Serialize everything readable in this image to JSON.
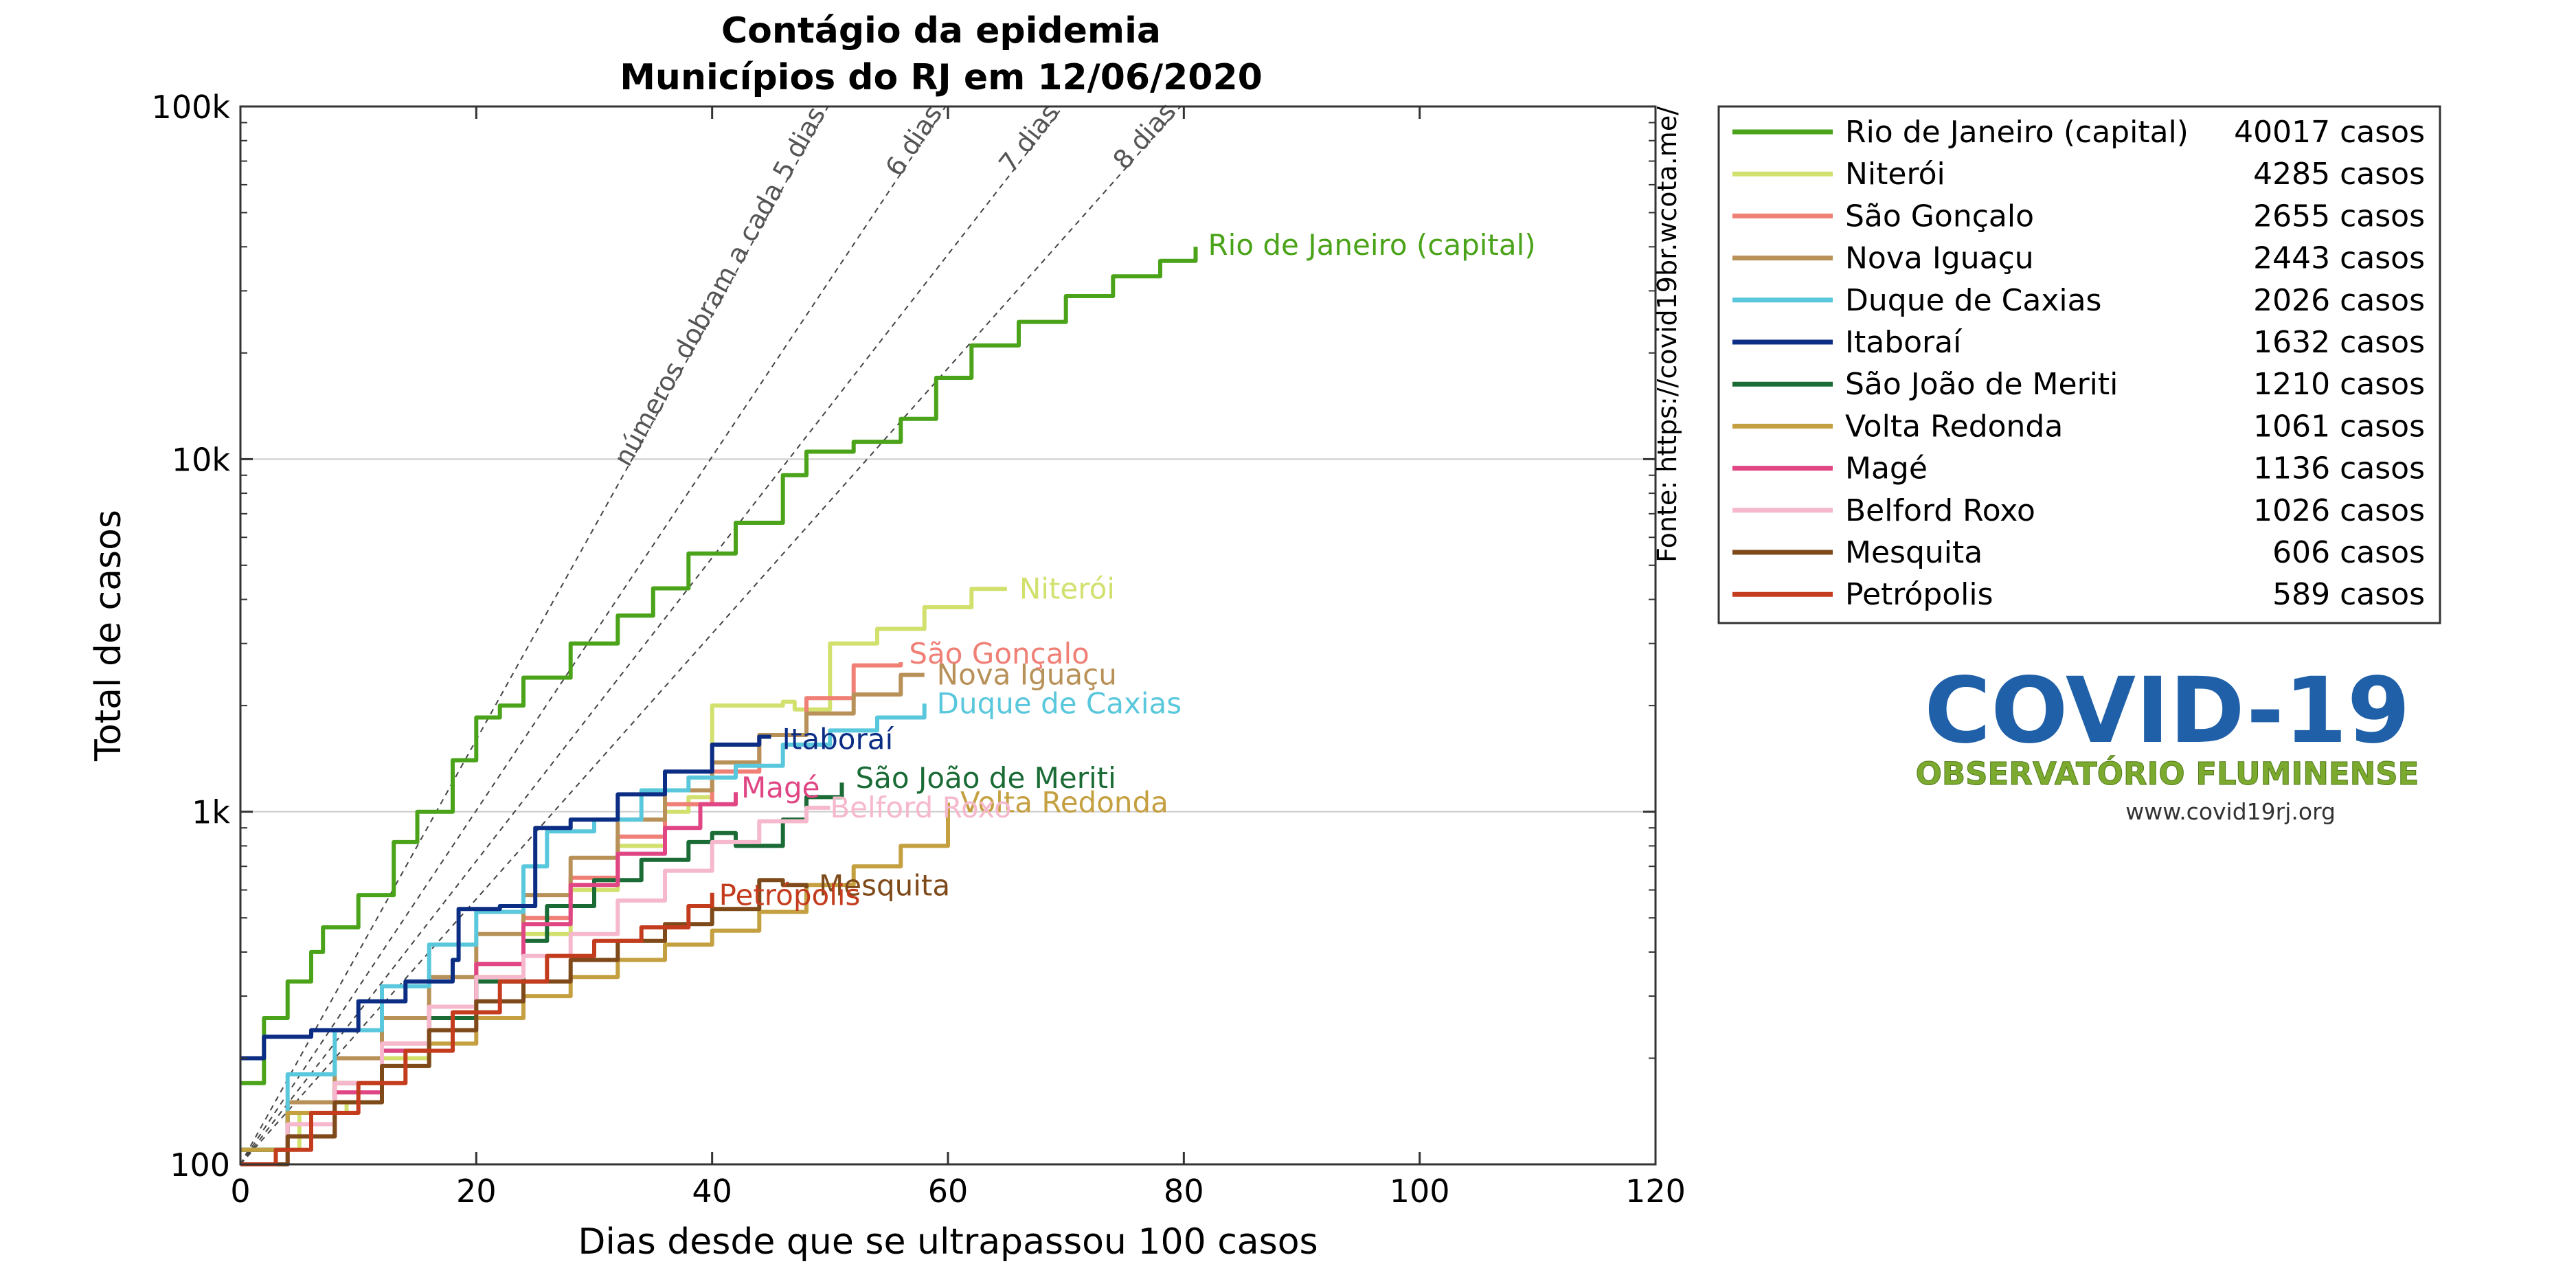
{
  "chart_data": {
    "type": "line",
    "title": "Contágio da epidemia",
    "subtitle": "Municípios do RJ em 12/06/2020",
    "xlabel": "Dias desde que se ultrapassou 100 casos",
    "ylabel": "Total de casos",
    "xlim": [
      0,
      120
    ],
    "ylim": [
      100,
      100000
    ],
    "yscale": "log",
    "x_ticks": [
      0,
      20,
      40,
      60,
      80,
      100,
      120
    ],
    "y_ticks": [
      {
        "value": 100,
        "label": "100"
      },
      {
        "value": 1000,
        "label": "1k"
      },
      {
        "value": 10000,
        "label": "10k"
      },
      {
        "value": 100000,
        "label": "100k"
      }
    ],
    "grid": "horizontal major",
    "source_note": "Fonte: https://covid19br.wcota.me/",
    "legend_position": "right",
    "legend_suffix": "casos",
    "doubling_lines": [
      {
        "days": 5,
        "label": "números dobram a cada 5 dias"
      },
      {
        "days": 6,
        "label": "6 dias"
      },
      {
        "days": 7,
        "label": "7 dias"
      },
      {
        "days": 8,
        "label": "8 dias"
      }
    ],
    "series": [
      {
        "name": "Rio de Janeiro (capital)",
        "total": 40017,
        "color": "#4aa319",
        "points": [
          [
            0,
            170
          ],
          [
            2,
            260
          ],
          [
            4,
            330
          ],
          [
            6,
            400
          ],
          [
            7,
            470
          ],
          [
            10,
            580
          ],
          [
            13,
            820
          ],
          [
            15,
            1000
          ],
          [
            18,
            1400
          ],
          [
            20,
            1850
          ],
          [
            22,
            2000
          ],
          [
            24,
            2400
          ],
          [
            28,
            3000
          ],
          [
            32,
            3600
          ],
          [
            35,
            4300
          ],
          [
            38,
            5400
          ],
          [
            42,
            6600
          ],
          [
            46,
            9000
          ],
          [
            48,
            10500
          ],
          [
            52,
            11200
          ],
          [
            56,
            13000
          ],
          [
            59,
            17000
          ],
          [
            62,
            21000
          ],
          [
            66,
            24500
          ],
          [
            70,
            29000
          ],
          [
            74,
            33000
          ],
          [
            78,
            36500
          ],
          [
            81,
            40017
          ]
        ]
      },
      {
        "name": "Niterói",
        "total": 4285,
        "color": "#d2e06e",
        "points": [
          [
            0,
            110
          ],
          [
            5,
            140
          ],
          [
            9,
            150
          ],
          [
            12,
            200
          ],
          [
            16,
            260
          ],
          [
            20,
            340
          ],
          [
            24,
            450
          ],
          [
            28,
            600
          ],
          [
            32,
            800
          ],
          [
            36,
            1000
          ],
          [
            38,
            1100
          ],
          [
            40,
            2000
          ],
          [
            46,
            2050
          ],
          [
            47,
            1950
          ],
          [
            50,
            3000
          ],
          [
            54,
            3300
          ],
          [
            58,
            3800
          ],
          [
            62,
            4285
          ],
          [
            65,
            4285
          ]
        ]
      },
      {
        "name": "São Gonçalo",
        "total": 2655,
        "color": "#f07f76",
        "points": [
          [
            0,
            100
          ],
          [
            4,
            130
          ],
          [
            8,
            170
          ],
          [
            12,
            220
          ],
          [
            16,
            280
          ],
          [
            20,
            370
          ],
          [
            24,
            500
          ],
          [
            28,
            650
          ],
          [
            32,
            850
          ],
          [
            36,
            1050
          ],
          [
            40,
            1300
          ],
          [
            44,
            1650
          ],
          [
            48,
            2100
          ],
          [
            52,
            2600
          ],
          [
            56,
            2655
          ]
        ]
      },
      {
        "name": "Nova Iguaçu",
        "total": 2443,
        "color": "#b89158",
        "points": [
          [
            0,
            110
          ],
          [
            4,
            150
          ],
          [
            8,
            200
          ],
          [
            12,
            260
          ],
          [
            16,
            340
          ],
          [
            20,
            450
          ],
          [
            24,
            580
          ],
          [
            28,
            740
          ],
          [
            32,
            950
          ],
          [
            36,
            1150
          ],
          [
            40,
            1380
          ],
          [
            44,
            1650
          ],
          [
            48,
            1900
          ],
          [
            52,
            2150
          ],
          [
            56,
            2443
          ],
          [
            58,
            2443
          ]
        ]
      },
      {
        "name": "Duque de Caxias",
        "total": 2026,
        "color": "#5ac8dc",
        "points": [
          [
            0,
            110
          ],
          [
            4,
            180
          ],
          [
            8,
            240
          ],
          [
            12,
            320
          ],
          [
            16,
            420
          ],
          [
            20,
            520
          ],
          [
            24,
            700
          ],
          [
            26,
            880
          ],
          [
            30,
            950
          ],
          [
            34,
            1150
          ],
          [
            38,
            1250
          ],
          [
            42,
            1350
          ],
          [
            46,
            1550
          ],
          [
            50,
            1700
          ],
          [
            54,
            1850
          ],
          [
            58,
            2026
          ]
        ]
      },
      {
        "name": "Itaboraí",
        "total": 1632,
        "color": "#0c2d84",
        "points": [
          [
            0,
            200
          ],
          [
            2,
            230
          ],
          [
            6,
            240
          ],
          [
            10,
            290
          ],
          [
            14,
            330
          ],
          [
            18,
            380
          ],
          [
            18.5,
            530
          ],
          [
            22,
            540
          ],
          [
            25,
            900
          ],
          [
            28,
            950
          ],
          [
            32,
            1120
          ],
          [
            36,
            1300
          ],
          [
            40,
            1550
          ],
          [
            44,
            1632
          ],
          [
            45,
            1632
          ]
        ]
      },
      {
        "name": "São João de Meriti",
        "total": 1210,
        "color": "#1a6b35",
        "points": [
          [
            0,
            110
          ],
          [
            4,
            140
          ],
          [
            8,
            170
          ],
          [
            12,
            210
          ],
          [
            16,
            260
          ],
          [
            20,
            330
          ],
          [
            24,
            430
          ],
          [
            26,
            540
          ],
          [
            30,
            640
          ],
          [
            34,
            730
          ],
          [
            38,
            820
          ],
          [
            40,
            870
          ],
          [
            42,
            800
          ],
          [
            46,
            950
          ],
          [
            48,
            1100
          ],
          [
            51,
            1210
          ]
        ]
      },
      {
        "name": "Volta Redonda",
        "total": 1061,
        "color": "#c4a040",
        "points": [
          [
            0,
            110
          ],
          [
            4,
            140
          ],
          [
            8,
            170
          ],
          [
            12,
            190
          ],
          [
            16,
            220
          ],
          [
            20,
            260
          ],
          [
            24,
            300
          ],
          [
            28,
            340
          ],
          [
            32,
            380
          ],
          [
            36,
            420
          ],
          [
            40,
            460
          ],
          [
            44,
            520
          ],
          [
            48,
            620
          ],
          [
            52,
            700
          ],
          [
            56,
            800
          ],
          [
            60,
            1061
          ]
        ]
      },
      {
        "name": "Magé",
        "total": 1136,
        "color": "#e04584",
        "points": [
          [
            0,
            100
          ],
          [
            4,
            120
          ],
          [
            8,
            160
          ],
          [
            12,
            210
          ],
          [
            16,
            280
          ],
          [
            20,
            370
          ],
          [
            24,
            480
          ],
          [
            28,
            620
          ],
          [
            32,
            760
          ],
          [
            36,
            900
          ],
          [
            39,
            1050
          ],
          [
            42,
            1136
          ]
        ]
      },
      {
        "name": "Belford Roxo",
        "total": 1026,
        "color": "#f5b8cc",
        "points": [
          [
            0,
            100
          ],
          [
            4,
            130
          ],
          [
            8,
            170
          ],
          [
            12,
            220
          ],
          [
            16,
            280
          ],
          [
            20,
            340
          ],
          [
            24,
            390
          ],
          [
            28,
            450
          ],
          [
            32,
            560
          ],
          [
            36,
            680
          ],
          [
            40,
            820
          ],
          [
            44,
            940
          ],
          [
            48,
            1026
          ],
          [
            50,
            1026
          ]
        ]
      },
      {
        "name": "Mesquita",
        "total": 606,
        "color": "#7f4a1a",
        "points": [
          [
            0,
            100
          ],
          [
            4,
            120
          ],
          [
            8,
            150
          ],
          [
            12,
            190
          ],
          [
            16,
            240
          ],
          [
            20,
            290
          ],
          [
            24,
            330
          ],
          [
            28,
            380
          ],
          [
            32,
            430
          ],
          [
            36,
            480
          ],
          [
            40,
            530
          ],
          [
            44,
            640
          ],
          [
            46,
            620
          ],
          [
            48,
            606
          ]
        ]
      },
      {
        "name": "Petrópolis",
        "total": 589,
        "color": "#c43c1e",
        "points": [
          [
            0,
            100
          ],
          [
            3,
            110
          ],
          [
            6,
            140
          ],
          [
            10,
            170
          ],
          [
            14,
            210
          ],
          [
            18,
            270
          ],
          [
            22,
            330
          ],
          [
            26,
            390
          ],
          [
            30,
            430
          ],
          [
            34,
            470
          ],
          [
            38,
            540
          ],
          [
            40,
            589
          ]
        ]
      }
    ]
  },
  "logo": {
    "text": "COVID-19",
    "subtitle": "OBSERVATÓRIO FLUMINENSE",
    "url": "www.covid19rj.org",
    "color": "#2060a8",
    "subtitle_color": "#7caa2e"
  }
}
